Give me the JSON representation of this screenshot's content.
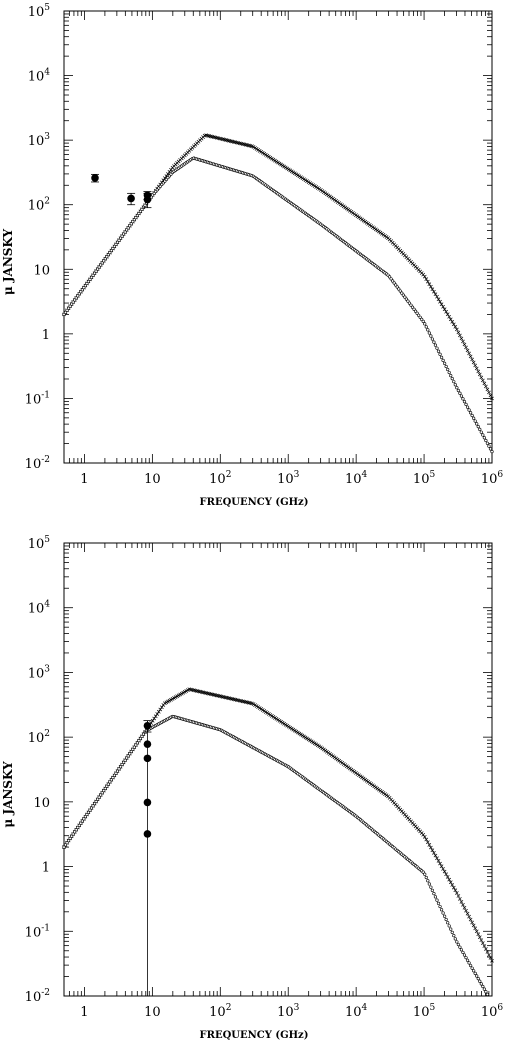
{
  "chart_data": [
    {
      "type": "scatter",
      "xlabel": "FREQUENCY (GHz)",
      "ylabel": "μ JANSKY",
      "xscale": "log",
      "yscale": "log",
      "xlim": [
        0.5,
        1000000
      ],
      "ylim": [
        0.01,
        100000
      ],
      "x_tick_labels": [
        "1",
        "10",
        "10^2",
        "10^3",
        "10^4",
        "10^5",
        "10^6"
      ],
      "y_tick_labels": [
        "10^-2",
        "10^-1",
        "1",
        "10",
        "10^2",
        "10^3",
        "10^4",
        "10^5"
      ],
      "observations": [
        {
          "x": 1.43,
          "y": 260,
          "err": 35
        },
        {
          "x": 4.86,
          "y": 125,
          "err": 25
        },
        {
          "x": 8.46,
          "y": 120,
          "err": 30
        },
        {
          "x": 8.46,
          "y": 140,
          "err": 20
        }
      ],
      "series": [
        {
          "marker": "cross",
          "x": [
            0.5,
            10,
            20,
            60,
            300,
            3000,
            30000,
            100000,
            300000,
            1000000
          ],
          "y": [
            2,
            140,
            380,
            1200,
            800,
            170,
            30,
            8,
            1.2,
            0.1
          ]
        },
        {
          "marker": "circle",
          "x": [
            0.5,
            10,
            20,
            40,
            300,
            3000,
            30000,
            100000,
            300000,
            1000000
          ],
          "y": [
            2,
            140,
            320,
            530,
            280,
            50,
            8,
            1.5,
            0.15,
            0.015
          ]
        }
      ]
    },
    {
      "type": "scatter",
      "xlabel": "FREQUENCY (GHz)",
      "ylabel": "μ JANSKY",
      "xscale": "log",
      "yscale": "log",
      "xlim": [
        0.5,
        1000000
      ],
      "ylim": [
        0.01,
        100000
      ],
      "x_tick_labels": [
        "1",
        "10",
        "10^2",
        "10^3",
        "10^4",
        "10^5",
        "10^6"
      ],
      "y_tick_labels": [
        "10^-2",
        "10^-1",
        "1",
        "10",
        "10^2",
        "10^3",
        "10^4",
        "10^5"
      ],
      "observations": [
        {
          "x": 8.46,
          "y": 150,
          "err": 30
        },
        {
          "x": 8.46,
          "y": 78,
          "err": 0
        },
        {
          "x": 8.46,
          "y": 47,
          "err": 0
        },
        {
          "x": 8.46,
          "y": 9.8,
          "err": 0
        },
        {
          "x": 8.46,
          "y": 3.2,
          "err": 0
        }
      ],
      "series": [
        {
          "marker": "cross",
          "x": [
            0.5,
            8,
            15,
            35,
            300,
            3000,
            30000,
            100000,
            300000,
            1000000
          ],
          "y": [
            2,
            125,
            330,
            550,
            330,
            70,
            12,
            3,
            0.4,
            0.035
          ]
        },
        {
          "marker": "circle",
          "x": [
            0.5,
            8,
            20,
            100,
            1000,
            10000,
            100000,
            300000,
            1000000
          ],
          "y": [
            2,
            125,
            210,
            130,
            35,
            6,
            0.8,
            0.07,
            0.008
          ]
        }
      ]
    }
  ]
}
